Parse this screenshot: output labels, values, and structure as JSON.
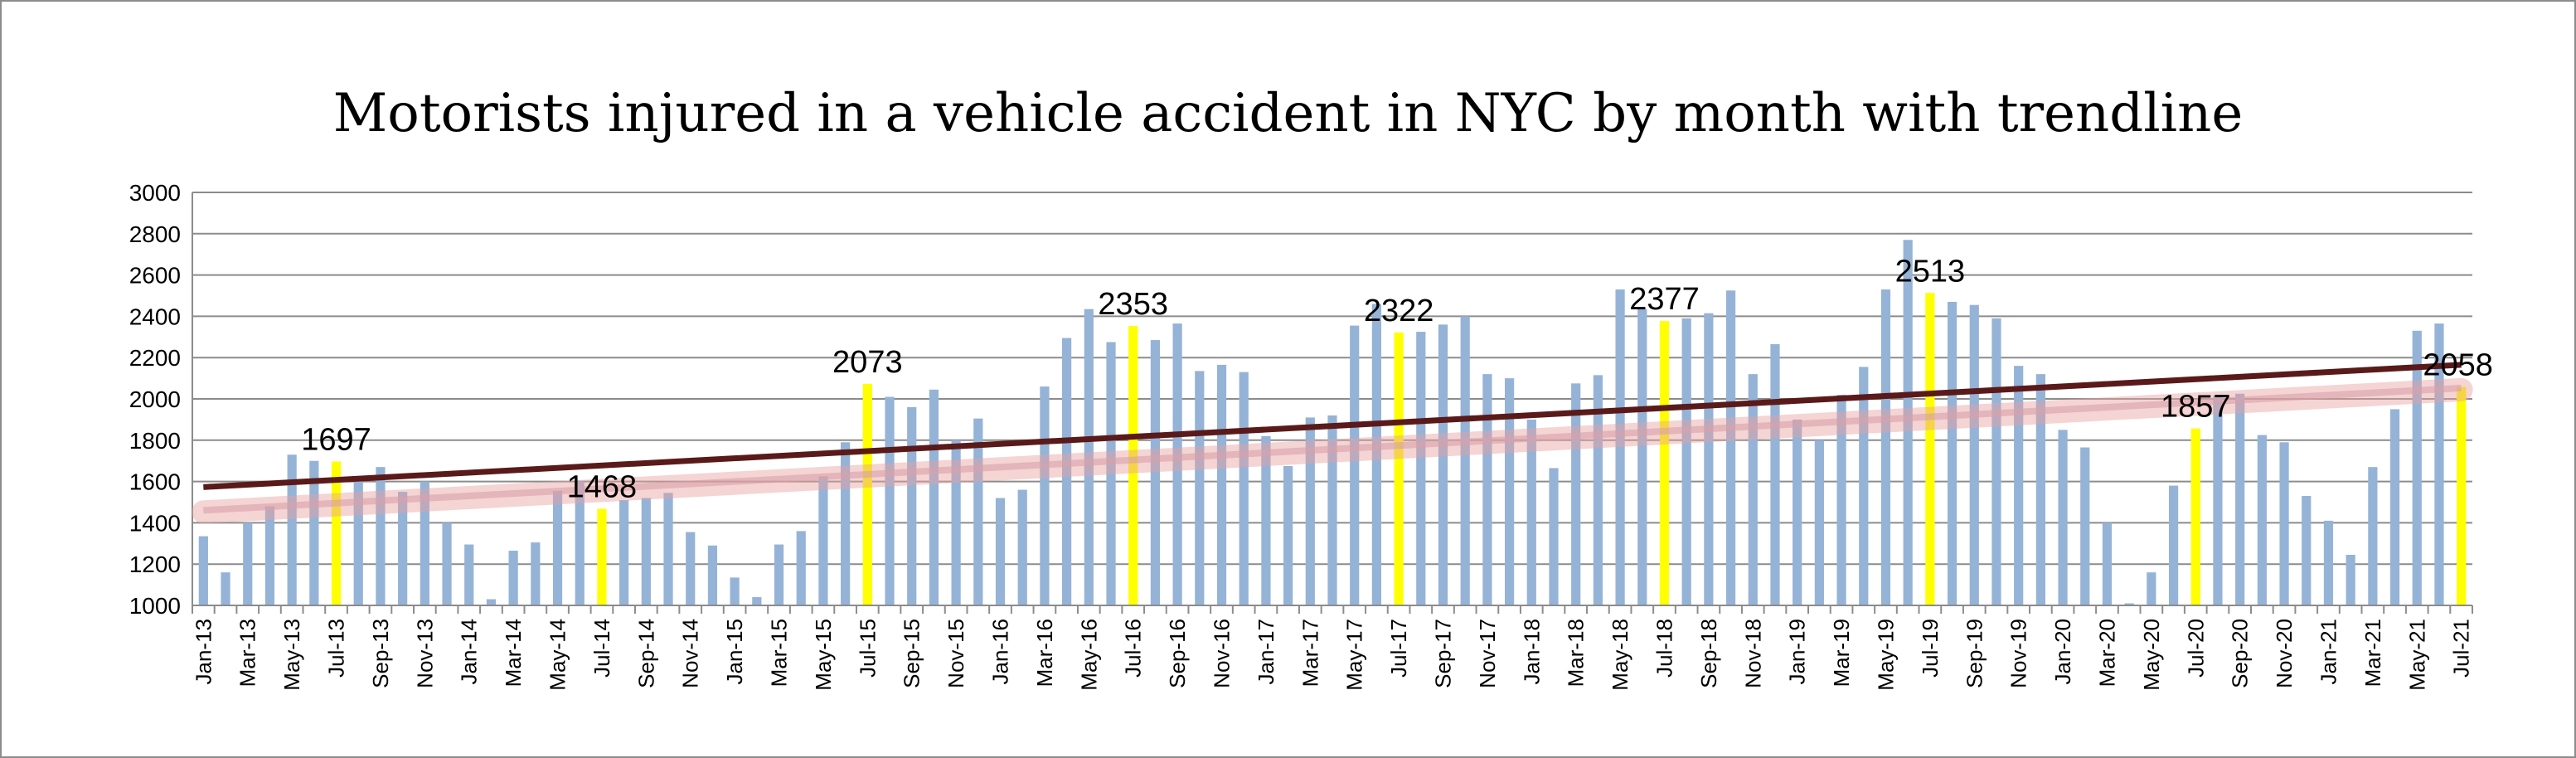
{
  "chart_data": {
    "type": "bar",
    "title": "Motorists injured in a vehicle accident in NYC by month with trendline",
    "xlabel": "",
    "ylabel": "",
    "ylim": [
      1000,
      3000
    ],
    "yticks": [
      1000,
      1200,
      1400,
      1600,
      1800,
      2000,
      2200,
      2400,
      2600,
      2800,
      3000
    ],
    "grid": true,
    "legend": "none",
    "categories": [
      "Jan-13",
      "Feb-13",
      "Mar-13",
      "Apr-13",
      "May-13",
      "Jun-13",
      "Jul-13",
      "Aug-13",
      "Sep-13",
      "Oct-13",
      "Nov-13",
      "Dec-13",
      "Jan-14",
      "Feb-14",
      "Mar-14",
      "Apr-14",
      "May-14",
      "Jun-14",
      "Jul-14",
      "Aug-14",
      "Sep-14",
      "Oct-14",
      "Nov-14",
      "Dec-14",
      "Jan-15",
      "Feb-15",
      "Mar-15",
      "Apr-15",
      "May-15",
      "Jun-15",
      "Jul-15",
      "Aug-15",
      "Sep-15",
      "Oct-15",
      "Nov-15",
      "Dec-15",
      "Jan-16",
      "Feb-16",
      "Mar-16",
      "Apr-16",
      "May-16",
      "Jun-16",
      "Jul-16",
      "Aug-16",
      "Sep-16",
      "Oct-16",
      "Nov-16",
      "Dec-16",
      "Jan-17",
      "Feb-17",
      "Mar-17",
      "Apr-17",
      "May-17",
      "Jun-17",
      "Jul-17",
      "Aug-17",
      "Sep-17",
      "Oct-17",
      "Nov-17",
      "Dec-17",
      "Jan-18",
      "Feb-18",
      "Mar-18",
      "Apr-18",
      "May-18",
      "Jun-18",
      "Jul-18",
      "Aug-18",
      "Sep-18",
      "Oct-18",
      "Nov-18",
      "Dec-18",
      "Jan-19",
      "Feb-19",
      "Mar-19",
      "Apr-19",
      "May-19",
      "Jun-19",
      "Jul-19",
      "Aug-19",
      "Sep-19",
      "Oct-19",
      "Nov-19",
      "Dec-19",
      "Jan-20",
      "Feb-20",
      "Mar-20",
      "Apr-20",
      "May-20",
      "Jun-20",
      "Jul-20",
      "Aug-20",
      "Sep-20",
      "Oct-20",
      "Nov-20",
      "Dec-20",
      "Jan-21",
      "Feb-21",
      "Mar-21",
      "Apr-21",
      "May-21",
      "Jun-21",
      "Jul-21"
    ],
    "x_tick_labels": [
      "Jan-13",
      "Mar-13",
      "May-13",
      "Jul-13",
      "Sep-13",
      "Nov-13",
      "Jan-14",
      "Mar-14",
      "May-14",
      "Jul-14",
      "Sep-14",
      "Nov-14",
      "Jan-15",
      "Mar-15",
      "May-15",
      "Jul-15",
      "Sep-15",
      "Nov-15",
      "Jan-16",
      "Mar-16",
      "May-16",
      "Jul-16",
      "Sep-16",
      "Nov-16",
      "Jan-17",
      "Mar-17",
      "May-17",
      "Jul-17",
      "Sep-17",
      "Nov-17",
      "Jan-18",
      "Mar-18",
      "May-18",
      "Jul-18",
      "Sep-18",
      "Nov-18",
      "Jan-19",
      "Mar-19",
      "May-19",
      "Jul-19",
      "Sep-19",
      "Nov-19",
      "Jan-20",
      "Mar-20",
      "May-20",
      "Jul-20",
      "Sep-20",
      "Nov-20",
      "Jan-21",
      "Mar-21",
      "May-21",
      "Jul-21"
    ],
    "values": [
      1335,
      1160,
      1400,
      1480,
      1730,
      1700,
      1697,
      1610,
      1670,
      1550,
      1600,
      1400,
      1295,
      1030,
      1265,
      1305,
      1555,
      1600,
      1468,
      1510,
      1520,
      1545,
      1355,
      1290,
      1135,
      1040,
      1295,
      1360,
      1625,
      1790,
      2073,
      2010,
      1960,
      2045,
      1800,
      1905,
      1520,
      1560,
      2060,
      2295,
      2435,
      2275,
      2353,
      2285,
      2365,
      2135,
      2165,
      2130,
      1820,
      1675,
      1910,
      1920,
      2355,
      2460,
      2322,
      2325,
      2360,
      2400,
      2120,
      2100,
      1900,
      1665,
      2075,
      2115,
      2530,
      2435,
      2377,
      2390,
      2415,
      2525,
      2120,
      2265,
      1900,
      1800,
      2020,
      2155,
      2530,
      2770,
      2513,
      2470,
      2455,
      2390,
      2160,
      2120,
      1850,
      1765,
      1400,
      1010,
      1160,
      1580,
      1857,
      2015,
      2025,
      1825,
      1790,
      1530,
      1410,
      1245,
      1670,
      1950,
      2330,
      2365,
      2058
    ],
    "highlight_color": "#ffff00",
    "bar_color": "#95b3d7",
    "trendline": {
      "start": 1573,
      "end": 2165,
      "color": "#5a1a1a",
      "shadow_color": "#e8a0a0"
    },
    "annotations": [
      {
        "category": "Jul-13",
        "label": "1697"
      },
      {
        "category": "Jul-14",
        "label": "1468"
      },
      {
        "category": "Jul-15",
        "label": "2073"
      },
      {
        "category": "Jul-16",
        "label": "2353"
      },
      {
        "category": "Jul-17",
        "label": "2322"
      },
      {
        "category": "Jul-18",
        "label": "2377"
      },
      {
        "category": "Jul-19",
        "label": "2513"
      },
      {
        "category": "Jul-20",
        "label": "1857"
      },
      {
        "category": "Jul-21",
        "label": "2058"
      }
    ]
  }
}
